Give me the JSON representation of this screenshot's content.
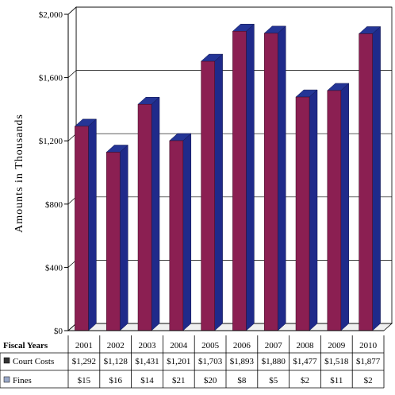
{
  "chart_data": {
    "type": "bar",
    "ylabel": "Amounts in Thousands",
    "ylim": [
      0,
      2000
    ],
    "yticks": [
      0,
      400,
      800,
      1200,
      1600,
      2000
    ],
    "ytick_labels": [
      "$0",
      "$400",
      "$800",
      "$1,200",
      "$1,600",
      "$2,000"
    ],
    "grid": true,
    "table": {
      "header_label": "Fiscal Years",
      "categories": [
        "2001",
        "2002",
        "2003",
        "2004",
        "2005",
        "2006",
        "2007",
        "2008",
        "2009",
        "2010"
      ],
      "rows": [
        {
          "label": "Court Costs",
          "cells": [
            "$1,292",
            "$1,128",
            "$1,431",
            "$1,201",
            "$1,703",
            "$1,893",
            "$1,880",
            "$1,477",
            "$1,518",
            "$1,877"
          ]
        },
        {
          "label": "Fines",
          "cells": [
            "$15",
            "$16",
            "$14",
            "$21",
            "$20",
            "$8",
            "$5",
            "$2",
            "$11",
            "$2"
          ]
        }
      ]
    },
    "series": [
      {
        "name": "Court Costs",
        "values": [
          1292,
          1128,
          1431,
          1201,
          1703,
          1893,
          1880,
          1477,
          1518,
          1877
        ],
        "color": "#8b1f52",
        "side_color": "#1f2a8a",
        "top_color": "#243596"
      },
      {
        "name": "Fines",
        "values": [
          15,
          16,
          14,
          21,
          20,
          8,
          5,
          2,
          11,
          2
        ],
        "color": "#9aa9c9",
        "side_color": "#6f7fa8",
        "top_color": "#b9c4dc"
      }
    ]
  }
}
